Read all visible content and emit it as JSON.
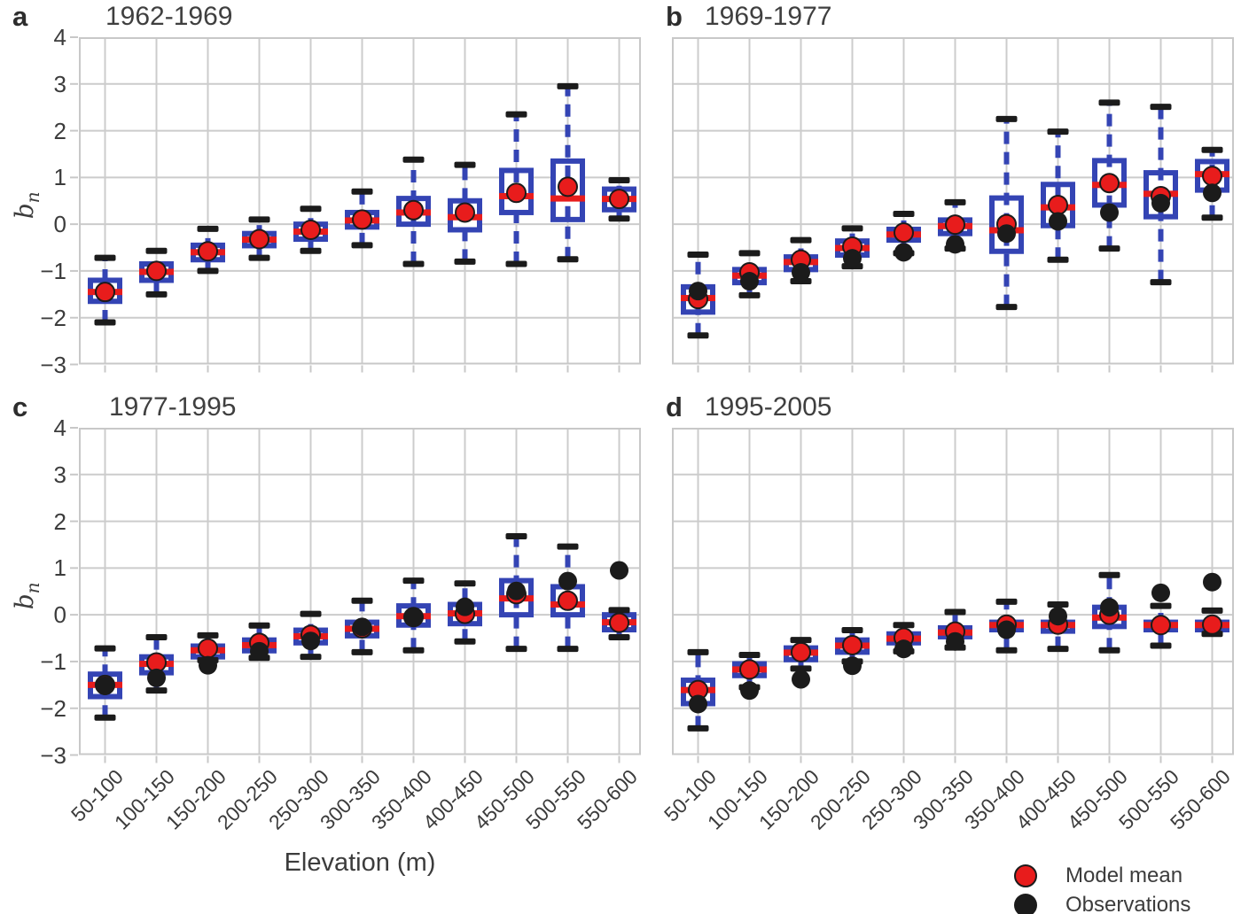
{
  "labels": {
    "xlabel": "Elevation (m)",
    "ylabel_base": "b",
    "ylabel_sub": "n"
  },
  "legend": {
    "items": [
      {
        "label": "Model mean",
        "marker": "circle",
        "color": "#e81c1c"
      },
      {
        "label": "Observations",
        "marker": "circle",
        "color": "#1b1b1b"
      }
    ]
  },
  "colors": {
    "box": "#3444b4",
    "median": "#e81c1c",
    "model_mean": "#e81c1c",
    "observation": "#1b1b1b",
    "cap": "#1b1b1b",
    "grid": "#cccccc",
    "frame": "#c8c8c8",
    "text": "#3c3c3c"
  },
  "categories": [
    "50-100",
    "100-150",
    "150-200",
    "200-250",
    "250-300",
    "300-350",
    "350-400",
    "400-450",
    "450-500",
    "500-550",
    "550-600"
  ],
  "yticks": [
    4,
    3,
    2,
    1,
    0,
    -1,
    -2,
    -3
  ],
  "chart_data": [
    {
      "type": "box",
      "panel_letter": "a",
      "title": "1962-1969",
      "xlabel": "",
      "ylabel": "bn",
      "ylim": [
        -3,
        4
      ],
      "grid": true,
      "categories": [
        "50-100",
        "100-150",
        "150-200",
        "200-250",
        "250-300",
        "300-350",
        "350-400",
        "400-450",
        "450-500",
        "500-550",
        "550-600"
      ],
      "boxes": [
        {
          "category": "50-100",
          "whislo": -2.1,
          "q1": -1.65,
          "med": -1.45,
          "q3": -1.2,
          "whishi": -0.72,
          "model_mean": -1.45,
          "observation": null
        },
        {
          "category": "100-150",
          "whislo": -1.5,
          "q1": -1.2,
          "med": -1.02,
          "q3": -0.85,
          "whishi": -0.57,
          "model_mean": -1.0,
          "observation": null
        },
        {
          "category": "150-200",
          "whislo": -1.0,
          "q1": -0.76,
          "med": -0.6,
          "q3": -0.45,
          "whishi": -0.1,
          "model_mean": -0.58,
          "observation": null
        },
        {
          "category": "200-250",
          "whislo": -0.72,
          "q1": -0.46,
          "med": -0.33,
          "q3": -0.2,
          "whishi": 0.1,
          "model_mean": -0.32,
          "observation": null
        },
        {
          "category": "250-300",
          "whislo": -0.57,
          "q1": -0.32,
          "med": -0.16,
          "q3": 0.0,
          "whishi": 0.33,
          "model_mean": -0.12,
          "observation": null
        },
        {
          "category": "300-350",
          "whislo": -0.45,
          "q1": -0.06,
          "med": 0.08,
          "q3": 0.25,
          "whishi": 0.7,
          "model_mean": 0.1,
          "observation": null
        },
        {
          "category": "350-400",
          "whislo": -0.85,
          "q1": 0.0,
          "med": 0.25,
          "q3": 0.55,
          "whishi": 1.38,
          "model_mean": 0.3,
          "observation": null
        },
        {
          "category": "400-450",
          "whislo": -0.8,
          "q1": -0.12,
          "med": 0.15,
          "q3": 0.5,
          "whishi": 1.27,
          "model_mean": 0.25,
          "observation": null
        },
        {
          "category": "450-500",
          "whislo": -0.85,
          "q1": 0.25,
          "med": 0.6,
          "q3": 1.15,
          "whishi": 2.35,
          "model_mean": 0.67,
          "observation": null
        },
        {
          "category": "500-550",
          "whislo": -0.75,
          "q1": 0.1,
          "med": 0.55,
          "q3": 1.35,
          "whishi": 2.95,
          "model_mean": 0.8,
          "observation": null
        },
        {
          "category": "550-600",
          "whislo": 0.12,
          "q1": 0.31,
          "med": 0.54,
          "q3": 0.75,
          "whishi": 0.94,
          "model_mean": 0.54,
          "observation": null
        }
      ]
    },
    {
      "type": "box",
      "panel_letter": "b",
      "title": "1969-1977",
      "xlabel": "",
      "ylabel": "",
      "ylim": [
        -3,
        4
      ],
      "grid": true,
      "categories": [
        "50-100",
        "100-150",
        "150-200",
        "200-250",
        "250-300",
        "300-350",
        "350-400",
        "400-450",
        "450-500",
        "500-550",
        "550-600"
      ],
      "boxes": [
        {
          "category": "50-100",
          "whislo": -2.38,
          "q1": -1.88,
          "med": -1.58,
          "q3": -1.34,
          "whishi": -0.65,
          "model_mean": -1.6,
          "observation": -1.43
        },
        {
          "category": "100-150",
          "whislo": -1.52,
          "q1": -1.25,
          "med": -1.1,
          "q3": -0.97,
          "whishi": -0.62,
          "model_mean": -1.03,
          "observation": -1.22
        },
        {
          "category": "150-200",
          "whislo": -1.22,
          "q1": -0.97,
          "med": -0.81,
          "q3": -0.7,
          "whishi": -0.34,
          "model_mean": -0.76,
          "observation": -1.03
        },
        {
          "category": "200-250",
          "whislo": -0.9,
          "q1": -0.66,
          "med": -0.51,
          "q3": -0.36,
          "whishi": -0.09,
          "model_mean": -0.48,
          "observation": -0.73
        },
        {
          "category": "250-300",
          "whislo": -0.62,
          "q1": -0.34,
          "med": -0.22,
          "q3": -0.11,
          "whishi": 0.22,
          "model_mean": -0.18,
          "observation": -0.6
        },
        {
          "category": "300-350",
          "whislo": -0.52,
          "q1": -0.2,
          "med": -0.04,
          "q3": 0.09,
          "whishi": 0.47,
          "model_mean": -0.01,
          "observation": -0.43
        },
        {
          "category": "350-400",
          "whislo": -1.77,
          "q1": -0.58,
          "med": -0.13,
          "q3": 0.56,
          "whishi": 2.25,
          "model_mean": 0.0,
          "observation": -0.2
        },
        {
          "category": "400-450",
          "whislo": -0.76,
          "q1": -0.03,
          "med": 0.36,
          "q3": 0.85,
          "whishi": 1.98,
          "model_mean": 0.41,
          "observation": 0.06
        },
        {
          "category": "450-500",
          "whislo": -0.52,
          "q1": 0.41,
          "med": 0.84,
          "q3": 1.36,
          "whishi": 2.6,
          "model_mean": 0.88,
          "observation": 0.25
        },
        {
          "category": "500-550",
          "whislo": -1.24,
          "q1": 0.16,
          "med": 0.65,
          "q3": 1.1,
          "whishi": 2.51,
          "model_mean": 0.6,
          "observation": 0.45
        },
        {
          "category": "550-600",
          "whislo": 0.14,
          "q1": 0.73,
          "med": 1.07,
          "q3": 1.34,
          "whishi": 1.59,
          "model_mean": 1.03,
          "observation": 0.67
        }
      ]
    },
    {
      "type": "box",
      "panel_letter": "c",
      "title": "1977-1995",
      "xlabel": "Elevation (m)",
      "ylabel": "bn",
      "ylim": [
        -3,
        4
      ],
      "grid": true,
      "categories": [
        "50-100",
        "100-150",
        "150-200",
        "200-250",
        "250-300",
        "300-350",
        "350-400",
        "400-450",
        "450-500",
        "500-550",
        "550-600"
      ],
      "boxes": [
        {
          "category": "50-100",
          "whislo": -2.2,
          "q1": -1.75,
          "med": -1.5,
          "q3": -1.27,
          "whishi": -0.72,
          "model_mean": -1.5,
          "observation": -1.52
        },
        {
          "category": "100-150",
          "whislo": -1.62,
          "q1": -1.24,
          "med": -1.05,
          "q3": -0.9,
          "whishi": -0.48,
          "model_mean": -1.02,
          "observation": -1.35
        },
        {
          "category": "150-200",
          "whislo": -0.97,
          "q1": -0.9,
          "med": -0.76,
          "q3": -0.67,
          "whishi": -0.44,
          "model_mean": -0.72,
          "observation": -1.08
        },
        {
          "category": "200-250",
          "whislo": -0.92,
          "q1": -0.77,
          "med": -0.65,
          "q3": -0.54,
          "whishi": -0.23,
          "model_mean": -0.6,
          "observation": -0.78
        },
        {
          "category": "250-300",
          "whislo": -0.9,
          "q1": -0.6,
          "med": -0.46,
          "q3": -0.33,
          "whishi": 0.02,
          "model_mean": -0.43,
          "observation": -0.56
        },
        {
          "category": "300-350",
          "whislo": -0.8,
          "q1": -0.45,
          "med": -0.3,
          "q3": -0.16,
          "whishi": 0.3,
          "model_mean": -0.29,
          "observation": -0.26
        },
        {
          "category": "350-400",
          "whislo": -0.76,
          "q1": -0.22,
          "med": -0.03,
          "q3": 0.19,
          "whishi": 0.73,
          "model_mean": -0.05,
          "observation": -0.04
        },
        {
          "category": "400-450",
          "whislo": -0.57,
          "q1": -0.19,
          "med": 0.03,
          "q3": 0.22,
          "whishi": 0.67,
          "model_mean": 0.02,
          "observation": 0.17
        },
        {
          "category": "450-500",
          "whislo": -0.73,
          "q1": 0.0,
          "med": 0.35,
          "q3": 0.73,
          "whishi": 1.68,
          "model_mean": 0.44,
          "observation": 0.51
        },
        {
          "category": "500-550",
          "whislo": -0.73,
          "q1": 0.0,
          "med": 0.22,
          "q3": 0.6,
          "whishi": 1.46,
          "model_mean": 0.3,
          "observation": 0.72
        },
        {
          "category": "550-600",
          "whislo": -0.48,
          "q1": -0.32,
          "med": -0.16,
          "q3": 0.0,
          "whishi": 0.1,
          "model_mean": -0.17,
          "observation": 0.95
        }
      ]
    },
    {
      "type": "box",
      "panel_letter": "d",
      "title": "1995-2005",
      "xlabel": "",
      "ylabel": "",
      "ylim": [
        -3,
        4
      ],
      "grid": true,
      "categories": [
        "50-100",
        "100-150",
        "150-200",
        "200-250",
        "250-300",
        "300-350",
        "350-400",
        "400-450",
        "450-500",
        "500-550",
        "550-600"
      ],
      "boxes": [
        {
          "category": "50-100",
          "whislo": -2.43,
          "q1": -1.9,
          "med": -1.61,
          "q3": -1.4,
          "whishi": -0.8,
          "model_mean": -1.61,
          "observation": -1.91
        },
        {
          "category": "100-150",
          "whislo": -1.55,
          "q1": -1.3,
          "med": -1.17,
          "q3": -1.05,
          "whishi": -0.86,
          "model_mean": -1.17,
          "observation": -1.62
        },
        {
          "category": "150-200",
          "whislo": -1.15,
          "q1": -0.96,
          "med": -0.81,
          "q3": -0.71,
          "whishi": -0.54,
          "model_mean": -0.8,
          "observation": -1.38
        },
        {
          "category": "200-250",
          "whislo": -1.0,
          "q1": -0.8,
          "med": -0.66,
          "q3": -0.54,
          "whishi": -0.33,
          "model_mean": -0.65,
          "observation": -1.09
        },
        {
          "category": "250-300",
          "whislo": -0.78,
          "q1": -0.6,
          "med": -0.51,
          "q3": -0.41,
          "whishi": -0.22,
          "model_mean": -0.49,
          "observation": -0.73
        },
        {
          "category": "300-350",
          "whislo": -0.7,
          "q1": -0.47,
          "med": -0.38,
          "q3": -0.28,
          "whishi": 0.06,
          "model_mean": -0.36,
          "observation": -0.57
        },
        {
          "category": "350-400",
          "whislo": -0.76,
          "q1": -0.32,
          "med": -0.22,
          "q3": -0.16,
          "whishi": 0.28,
          "model_mean": -0.21,
          "observation": -0.32
        },
        {
          "category": "400-450",
          "whislo": -0.73,
          "q1": -0.35,
          "med": -0.22,
          "q3": -0.16,
          "whishi": 0.22,
          "model_mean": -0.21,
          "observation": -0.03
        },
        {
          "category": "450-500",
          "whislo": -0.76,
          "q1": -0.25,
          "med": -0.06,
          "q3": 0.16,
          "whishi": 0.85,
          "model_mean": 0.0,
          "observation": 0.16
        },
        {
          "category": "500-550",
          "whislo": -0.66,
          "q1": -0.32,
          "med": -0.22,
          "q3": -0.16,
          "whishi": 0.19,
          "model_mean": -0.22,
          "observation": 0.47
        },
        {
          "category": "550-600",
          "whislo": -0.41,
          "q1": -0.32,
          "med": -0.22,
          "q3": -0.16,
          "whishi": 0.09,
          "model_mean": -0.21,
          "observation": 0.7
        }
      ]
    }
  ]
}
